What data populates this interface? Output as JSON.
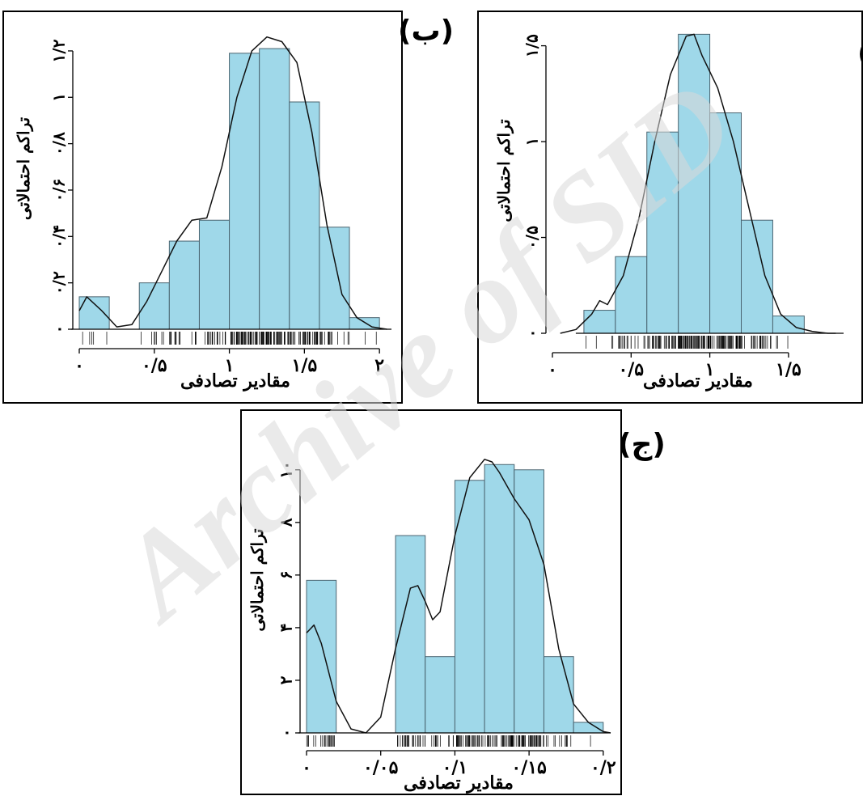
{
  "watermark": "Archive of SID",
  "colors": {
    "bar_fill": "#9fd8e9",
    "bar_stroke": "#4a6470",
    "curve": "#111111",
    "axis": "#000000",
    "frame": "#000000",
    "watermark": "#d9d9d9"
  },
  "chart_data": [
    {
      "id": "alef",
      "panel_label": "(الف)",
      "type": "bar",
      "xlabel": "مقادیر تصادفی",
      "ylabel": "تراکم احتمالاتی",
      "xlim": [
        0.0,
        1.85
      ],
      "ylim": [
        0.0,
        1.57
      ],
      "x_ticks": [
        0.0,
        0.5,
        1.0,
        1.5
      ],
      "x_tick_labels": [
        "۰",
        "۰/۵",
        "۱",
        "۱/۵"
      ],
      "y_ticks": [
        0.0,
        0.5,
        1.0,
        1.5
      ],
      "y_tick_labels": [
        "۰",
        "۰/۵",
        "۱",
        "۱/۵"
      ],
      "bin_width": 0.2,
      "bins_start": [
        0.2,
        0.4,
        0.6,
        0.8,
        1.0,
        1.2,
        1.4,
        1.6
      ],
      "values": [
        0.12,
        0.4,
        1.05,
        1.56,
        1.15,
        0.59,
        0.09,
        0.0
      ],
      "density_curve": {
        "x": [
          0.05,
          0.15,
          0.25,
          0.3,
          0.35,
          0.45,
          0.55,
          0.65,
          0.75,
          0.85,
          0.9,
          0.95,
          1.05,
          1.15,
          1.25,
          1.35,
          1.45,
          1.55,
          1.65,
          1.75,
          1.8
        ],
        "y": [
          0.0,
          0.02,
          0.1,
          0.17,
          0.15,
          0.3,
          0.6,
          1.0,
          1.35,
          1.55,
          1.56,
          1.45,
          1.28,
          1.0,
          0.65,
          0.3,
          0.1,
          0.03,
          0.01,
          0.0,
          0.0
        ]
      }
    },
    {
      "id": "be",
      "panel_label": "(ب)",
      "type": "bar",
      "xlabel": "مقادیر تصادفی",
      "ylabel": "تراکم احتمالاتی",
      "xlim": [
        0.0,
        2.08
      ],
      "ylim": [
        0.0,
        1.28
      ],
      "x_ticks": [
        0.0,
        0.5,
        1.0,
        1.5,
        2.0
      ],
      "x_tick_labels": [
        "۰",
        "۰/۵",
        "۱",
        "۱/۵",
        "۲"
      ],
      "y_ticks": [
        0.0,
        0.2,
        0.4,
        0.6,
        0.8,
        1.0,
        1.2
      ],
      "y_tick_labels": [
        "۰",
        "۰/۲",
        "۰/۴",
        "۰/۶",
        "۰/۸",
        "۱",
        "۱/۲"
      ],
      "bin_width": 0.2,
      "bins_start": [
        0.0,
        0.2,
        0.4,
        0.6,
        0.8,
        1.0,
        1.2,
        1.4,
        1.6,
        1.8
      ],
      "values": [
        0.14,
        0.0,
        0.2,
        0.38,
        0.47,
        1.19,
        1.21,
        0.98,
        0.44,
        0.05
      ],
      "density_curve": {
        "x": [
          0.0,
          0.05,
          0.15,
          0.25,
          0.35,
          0.45,
          0.55,
          0.65,
          0.75,
          0.85,
          0.95,
          1.05,
          1.15,
          1.25,
          1.3,
          1.35,
          1.45,
          1.55,
          1.65,
          1.75,
          1.85,
          1.95,
          2.05
        ],
        "y": [
          0.08,
          0.14,
          0.08,
          0.01,
          0.02,
          0.12,
          0.25,
          0.38,
          0.47,
          0.48,
          0.7,
          1.0,
          1.2,
          1.26,
          1.25,
          1.24,
          1.15,
          0.85,
          0.45,
          0.15,
          0.05,
          0.01,
          0.0
        ]
      }
    },
    {
      "id": "jim",
      "panel_label": "(ج)",
      "type": "bar",
      "xlabel": "مقادیر تصادفی",
      "ylabel": "تراکم احتمالاتی",
      "xlim": [
        0.0,
        0.205
      ],
      "ylim": [
        0.0,
        10.7
      ],
      "x_ticks": [
        0.0,
        0.05,
        0.1,
        0.15,
        0.2
      ],
      "x_tick_labels": [
        "۰",
        "۰/۰۵",
        "۰/۱",
        "۰/۱۵",
        "۰/۲"
      ],
      "y_ticks": [
        0,
        2,
        4,
        6,
        8,
        10
      ],
      "y_tick_labels": [
        "۰",
        "۲",
        "۴",
        "۶",
        "۸",
        "۱۰"
      ],
      "bin_width": 0.02,
      "bins_start": [
        0.0,
        0.02,
        0.04,
        0.06,
        0.08,
        0.1,
        0.12,
        0.14,
        0.16,
        0.18
      ],
      "values": [
        5.8,
        0.0,
        0.0,
        7.5,
        2.9,
        9.6,
        10.2,
        10.0,
        2.9,
        0.4
      ],
      "density_curve": {
        "x": [
          0.0,
          0.005,
          0.01,
          0.02,
          0.03,
          0.04,
          0.05,
          0.06,
          0.07,
          0.075,
          0.08,
          0.085,
          0.09,
          0.1,
          0.11,
          0.12,
          0.125,
          0.13,
          0.14,
          0.15,
          0.16,
          0.17,
          0.18,
          0.19,
          0.2,
          0.205
        ],
        "y": [
          3.8,
          4.1,
          3.4,
          1.2,
          0.15,
          0.0,
          0.6,
          3.2,
          5.5,
          5.6,
          5.0,
          4.3,
          4.6,
          7.5,
          9.7,
          10.4,
          10.3,
          9.9,
          8.9,
          8.1,
          6.4,
          3.2,
          1.1,
          0.4,
          0.05,
          0.0
        ]
      }
    }
  ]
}
